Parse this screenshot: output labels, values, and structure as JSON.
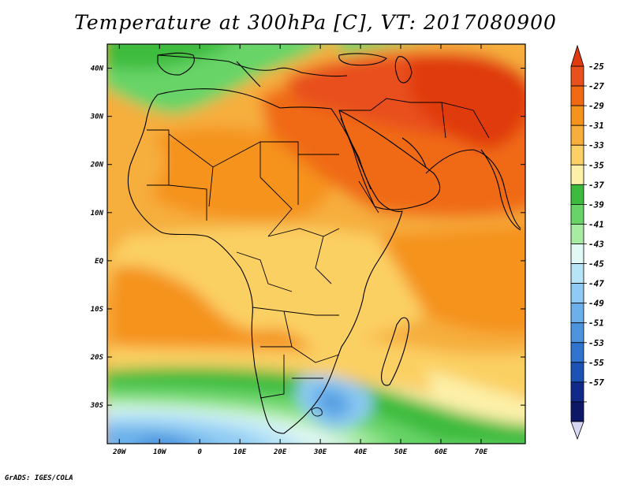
{
  "title": "Temperature at 300hPa [C], VT: 2017080900",
  "footer": "GrADS: IGES/COLA",
  "map": {
    "region": "Africa, Middle East and South Asia",
    "variable": "Temperature at 300hPa",
    "units": "C",
    "lon_range": [
      -23,
      81
    ],
    "lat_range": [
      -38,
      45
    ],
    "lon_ticks": [
      "20W",
      "10W",
      "0",
      "10E",
      "20E",
      "30E",
      "40E",
      "50E",
      "60E",
      "70E"
    ],
    "lat_ticks": [
      "40N",
      "30N",
      "20N",
      "10N",
      "EQ",
      "10S",
      "20S",
      "30S"
    ],
    "features": {
      "warmest": "-25 to -27 over Arabia, Iran and Pakistan",
      "cool_band": "-35 to -39 across southern Africa near 25S and over Europe/Mediterranean",
      "coldest": "-45 to -53 south of 30S over the South Atlantic"
    }
  },
  "colorbar": {
    "labels": [
      "-25",
      "-27",
      "-29",
      "-31",
      "-33",
      "-35",
      "-37",
      "-39",
      "-41",
      "-43",
      "-45",
      "-47",
      "-49",
      "-51",
      "-53",
      "-55",
      "-57"
    ],
    "colors": [
      "#e8501e",
      "#f06a14",
      "#f5931c",
      "#f6ae3c",
      "#fbd064",
      "#fdf0a8",
      "#3cbb3c",
      "#68d468",
      "#a8eba2",
      "#e2f8f4",
      "#b8e4f7",
      "#8ecaf3",
      "#6bb0ea",
      "#4c94de",
      "#2f74cf",
      "#1c52b5",
      "#112a8a",
      "#0c1768"
    ],
    "arrow_top": "#e03a10",
    "arrow_bottom": "#d7d7f2"
  }
}
